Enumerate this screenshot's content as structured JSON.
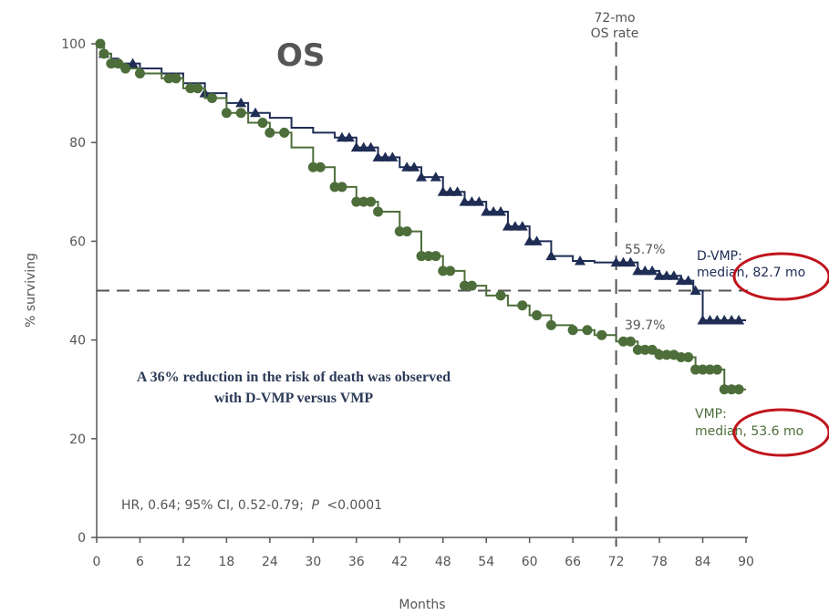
{
  "chart_data": {
    "type": "line",
    "title": "OS",
    "xlabel": "Months",
    "ylabel": "% surviving",
    "xlim": [
      0,
      90
    ],
    "ylim": [
      0,
      100
    ],
    "xticks": [
      0,
      6,
      12,
      18,
      24,
      30,
      36,
      42,
      48,
      54,
      60,
      66,
      72,
      78,
      84,
      90
    ],
    "yticks": [
      0,
      20,
      40,
      60,
      80,
      100
    ],
    "reference_line_y": 50,
    "reference_line_x": 72,
    "reference_line_x_label": [
      "72-mo",
      "OS rate"
    ],
    "grid": false,
    "series": [
      {
        "name": "D-VMP",
        "color": "#1f2d55",
        "marker": "triangle",
        "points": [
          [
            0,
            100
          ],
          [
            1,
            98
          ],
          [
            2,
            97
          ],
          [
            3,
            96
          ],
          [
            6,
            95
          ],
          [
            9,
            94
          ],
          [
            12,
            92
          ],
          [
            15,
            90
          ],
          [
            18,
            88
          ],
          [
            21,
            86
          ],
          [
            24,
            85
          ],
          [
            27,
            83
          ],
          [
            30,
            82
          ],
          [
            33,
            81
          ],
          [
            36,
            79
          ],
          [
            39,
            77
          ],
          [
            42,
            75
          ],
          [
            45,
            73
          ],
          [
            48,
            70
          ],
          [
            51,
            68
          ],
          [
            54,
            66
          ],
          [
            57,
            63
          ],
          [
            60,
            60
          ],
          [
            63,
            57
          ],
          [
            66,
            56
          ],
          [
            69,
            55.7
          ],
          [
            72,
            55.7
          ],
          [
            75,
            54
          ],
          [
            78,
            53
          ],
          [
            81,
            52
          ],
          [
            82.7,
            50
          ],
          [
            84,
            44
          ],
          [
            90,
            44
          ]
        ],
        "marker_x": [
          1,
          3,
          5,
          15,
          20,
          22,
          34,
          35,
          36,
          37,
          38,
          39,
          40,
          41,
          43,
          44,
          45,
          47,
          48,
          49,
          50,
          51,
          52,
          53,
          54,
          55,
          56,
          57,
          58,
          59,
          60,
          61,
          63,
          67,
          72,
          73,
          74,
          75,
          76,
          77,
          78,
          79,
          80,
          81,
          82,
          83,
          84,
          85,
          86,
          87,
          88,
          89
        ],
        "label": [
          "D-VMP:",
          "median, 82.7 mo"
        ],
        "rate_label": "55.7%"
      },
      {
        "name": "VMP",
        "color": "#4d6e3a",
        "marker": "circle",
        "points": [
          [
            0,
            100
          ],
          [
            1,
            98
          ],
          [
            2,
            96
          ],
          [
            4,
            95
          ],
          [
            6,
            94
          ],
          [
            9,
            93
          ],
          [
            12,
            91
          ],
          [
            15,
            89
          ],
          [
            18,
            86
          ],
          [
            21,
            84
          ],
          [
            24,
            82
          ],
          [
            27,
            79
          ],
          [
            30,
            75
          ],
          [
            33,
            71
          ],
          [
            36,
            68
          ],
          [
            39,
            66
          ],
          [
            42,
            62
          ],
          [
            45,
            57
          ],
          [
            48,
            54
          ],
          [
            51,
            51
          ],
          [
            54,
            49
          ],
          [
            57,
            47
          ],
          [
            60,
            45
          ],
          [
            63,
            43
          ],
          [
            66,
            42
          ],
          [
            69,
            41
          ],
          [
            72,
            39.7
          ],
          [
            75,
            38
          ],
          [
            78,
            37
          ],
          [
            81,
            36.5
          ],
          [
            83,
            34
          ],
          [
            86,
            34
          ],
          [
            87,
            30
          ],
          [
            90,
            30
          ]
        ],
        "marker_x": [
          0.5,
          1,
          2,
          3,
          4,
          6,
          10,
          11,
          13,
          14,
          16,
          18,
          20,
          23,
          24,
          26,
          30,
          31,
          33,
          34,
          36,
          37,
          38,
          39,
          42,
          43,
          45,
          46,
          47,
          48,
          49,
          51,
          52,
          56,
          59,
          61,
          63,
          66,
          68,
          70,
          73,
          74,
          75,
          76,
          77,
          78,
          79,
          80,
          81,
          82,
          83,
          84,
          85,
          86,
          87,
          88,
          89
        ],
        "label": [
          "VMP:",
          "median, 53.6 mo"
        ],
        "rate_label": "39.7%"
      }
    ],
    "annotations": {
      "note": [
        "A 36% reduction in the risk of death was observed",
        "with D-VMP versus VMP"
      ],
      "hr_text": "HR, 0.64; 95% CI, 0.52-0.79;",
      "p_label": "P",
      "p_value": "<0.0001"
    },
    "highlight_color": "#c0141c"
  }
}
